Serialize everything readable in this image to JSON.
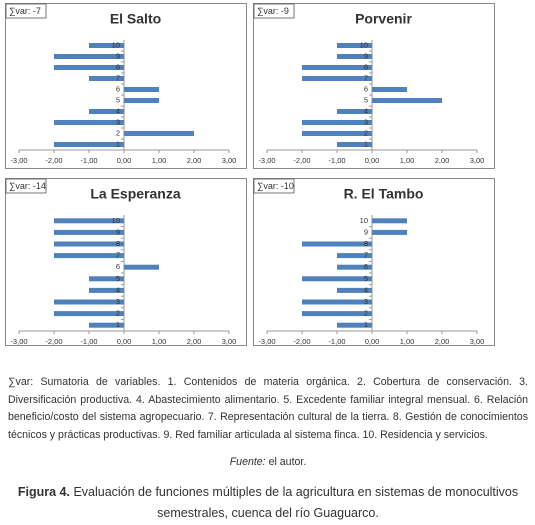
{
  "chart_data": [
    {
      "type": "bar",
      "orientation": "horizontal",
      "title": "El Salto",
      "annotation": "∑var: -7",
      "categories": [
        "1",
        "2",
        "3",
        "4",
        "5",
        "6",
        "7",
        "8",
        "9",
        "10"
      ],
      "values": [
        -2,
        2,
        -2,
        -1,
        1,
        1,
        -1,
        -2,
        -2,
        -1
      ],
      "color": "#4f81bd",
      "xlim": [
        -3,
        3
      ],
      "xticks": [
        {
          "value": -3,
          "label": "-3,00"
        },
        {
          "value": -2,
          "label": "-2,00"
        },
        {
          "value": -1,
          "label": "-1,00"
        },
        {
          "value": 0,
          "label": "0,00"
        },
        {
          "value": 1,
          "label": "1,00"
        },
        {
          "value": 2,
          "label": "2,00"
        },
        {
          "value": 3,
          "label": "3,00"
        }
      ]
    },
    {
      "type": "bar",
      "orientation": "horizontal",
      "title": "Porvenir",
      "annotation": "∑var: -9",
      "categories": [
        "1",
        "2",
        "3",
        "4",
        "5",
        "6",
        "7",
        "8",
        "9",
        "10"
      ],
      "values": [
        -1,
        -2,
        -2,
        -1,
        2,
        1,
        -2,
        -2,
        -1,
        -1
      ],
      "color": "#4f81bd",
      "xlim": [
        -3,
        3
      ],
      "xticks": [
        {
          "value": -3,
          "label": "-3,00"
        },
        {
          "value": -2,
          "label": "-2,00"
        },
        {
          "value": -1,
          "label": "-1,00"
        },
        {
          "value": 0,
          "label": "0,00"
        },
        {
          "value": 1,
          "label": "1,00"
        },
        {
          "value": 2,
          "label": "2,00"
        },
        {
          "value": 3,
          "label": "3,00"
        }
      ]
    },
    {
      "type": "bar",
      "orientation": "horizontal",
      "title": "La Esperanza",
      "annotation": "∑var: -14",
      "categories": [
        "1",
        "2",
        "3",
        "4",
        "5",
        "6",
        "7",
        "8",
        "9",
        "10"
      ],
      "values": [
        -1,
        -2,
        -2,
        -1,
        -1,
        1,
        -2,
        -2,
        -2,
        -2
      ],
      "color": "#4f81bd",
      "xlim": [
        -3,
        3
      ],
      "xticks": [
        {
          "value": -3,
          "label": "-3,00"
        },
        {
          "value": -2,
          "label": "-2,00"
        },
        {
          "value": -1,
          "label": "-1,00"
        },
        {
          "value": 0,
          "label": "0,00"
        },
        {
          "value": 1,
          "label": "1,00"
        },
        {
          "value": 2,
          "label": "2,00"
        },
        {
          "value": 3,
          "label": "3,00"
        }
      ]
    },
    {
      "type": "bar",
      "orientation": "horizontal",
      "title": "R. El Tambo",
      "annotation": "∑var: -10",
      "categories": [
        "1",
        "2",
        "3",
        "4",
        "5",
        "6",
        "7",
        "8",
        "9",
        "10"
      ],
      "values": [
        -1,
        -2,
        -2,
        -1,
        -2,
        -1,
        -1,
        -2,
        1,
        1
      ],
      "color": "#4f81bd",
      "xlim": [
        -3,
        3
      ],
      "xticks": [
        {
          "value": -3,
          "label": "-3,00"
        },
        {
          "value": -2,
          "label": "-2,00"
        },
        {
          "value": -1,
          "label": "-1,00"
        },
        {
          "value": 0,
          "label": "0,00"
        },
        {
          "value": 1,
          "label": "1,00"
        },
        {
          "value": 2,
          "label": "2,00"
        },
        {
          "value": 3,
          "label": "3,00"
        }
      ]
    }
  ],
  "caption": {
    "legend": "∑var: Sumatoria de variables. 1. Contenidos de materia orgánica. 2. Cobertura de conservación. 3. Diversificación productiva. 4. Abastecimiento alimentario. 5. Excedente familiar integral mensual. 6. Relación beneficio/costo del sistema agropecuario. 7. Representación cultural de la tierra. 8. Gestión de conocimientos técnicos y prácticas productivas. 9. Red familiar articulada al sistema finca. 10. Residencia y servicios.",
    "source_label": "Fuente:",
    "source": "el autor.",
    "figure_label": "Figura 4.",
    "figure_text": "Evaluación de funciones múltiples de la agricultura en sistemas de monocultivos semestrales, cuenca del río Guaguarco."
  }
}
